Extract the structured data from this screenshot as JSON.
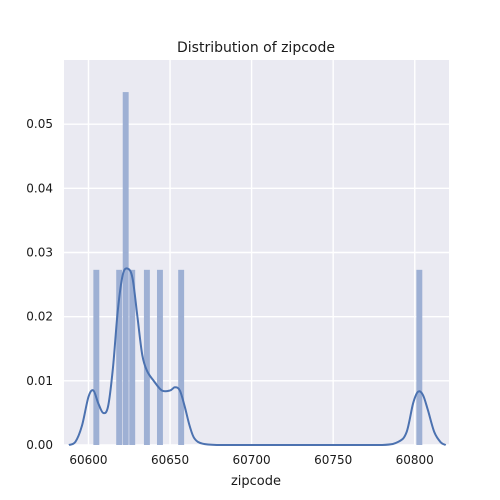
{
  "chart_data": {
    "type": "histogram+kde",
    "title": "Distribution of zipcode",
    "xlabel": "zipcode",
    "ylabel": "",
    "xlim": [
      60585,
      60821
    ],
    "ylim": [
      0,
      0.06
    ],
    "x_ticks": [
      60600,
      60650,
      60700,
      60750,
      60800
    ],
    "y_ticks": [
      0.0,
      0.01,
      0.02,
      0.03,
      0.04,
      0.05
    ],
    "x_tick_labels": [
      "60600",
      "60650",
      "60700",
      "60750",
      "60800"
    ],
    "y_tick_labels": [
      "0.00",
      "0.01",
      "0.02",
      "0.03",
      "0.04",
      "0.05"
    ],
    "grid": true,
    "bar_color": "#9eb0d4",
    "line_color": "#4c72b0",
    "background_color": "#eaeaf2",
    "bins": [
      {
        "x0": 60603,
        "x1": 60607,
        "density": 0.0273
      },
      {
        "x0": 60617,
        "x1": 60621,
        "density": 0.0273
      },
      {
        "x0": 60621,
        "x1": 60625,
        "density": 0.055
      },
      {
        "x0": 60625,
        "x1": 60629,
        "density": 0.0273
      },
      {
        "x0": 60634,
        "x1": 60638,
        "density": 0.0273
      },
      {
        "x0": 60642,
        "x1": 60646,
        "density": 0.0273
      },
      {
        "x0": 60655,
        "x1": 60659,
        "density": 0.0273
      },
      {
        "x0": 60801,
        "x1": 60805,
        "density": 0.0273
      }
    ],
    "kde": {
      "x": [
        60588,
        60592,
        60596,
        60600,
        60603,
        60606,
        60609,
        60612,
        60615,
        60618,
        60621,
        60624,
        60627,
        60630,
        60633,
        60636,
        60640,
        60645,
        60650,
        60653,
        60656,
        60659,
        60662,
        60665,
        60670,
        60680,
        60700,
        60750,
        60780,
        60790,
        60795,
        60799,
        60802,
        60805,
        60808,
        60812,
        60816,
        60819
      ],
      "y": [
        0.0,
        0.0005,
        0.003,
        0.0075,
        0.0085,
        0.0065,
        0.005,
        0.006,
        0.012,
        0.021,
        0.0265,
        0.0275,
        0.026,
        0.02,
        0.014,
        0.0115,
        0.01,
        0.0085,
        0.0085,
        0.009,
        0.0085,
        0.006,
        0.003,
        0.001,
        0.0002,
        0.0,
        0.0,
        0.0,
        0.0,
        0.0005,
        0.002,
        0.0065,
        0.0083,
        0.0078,
        0.0055,
        0.002,
        0.0004,
        0.0
      ]
    }
  }
}
